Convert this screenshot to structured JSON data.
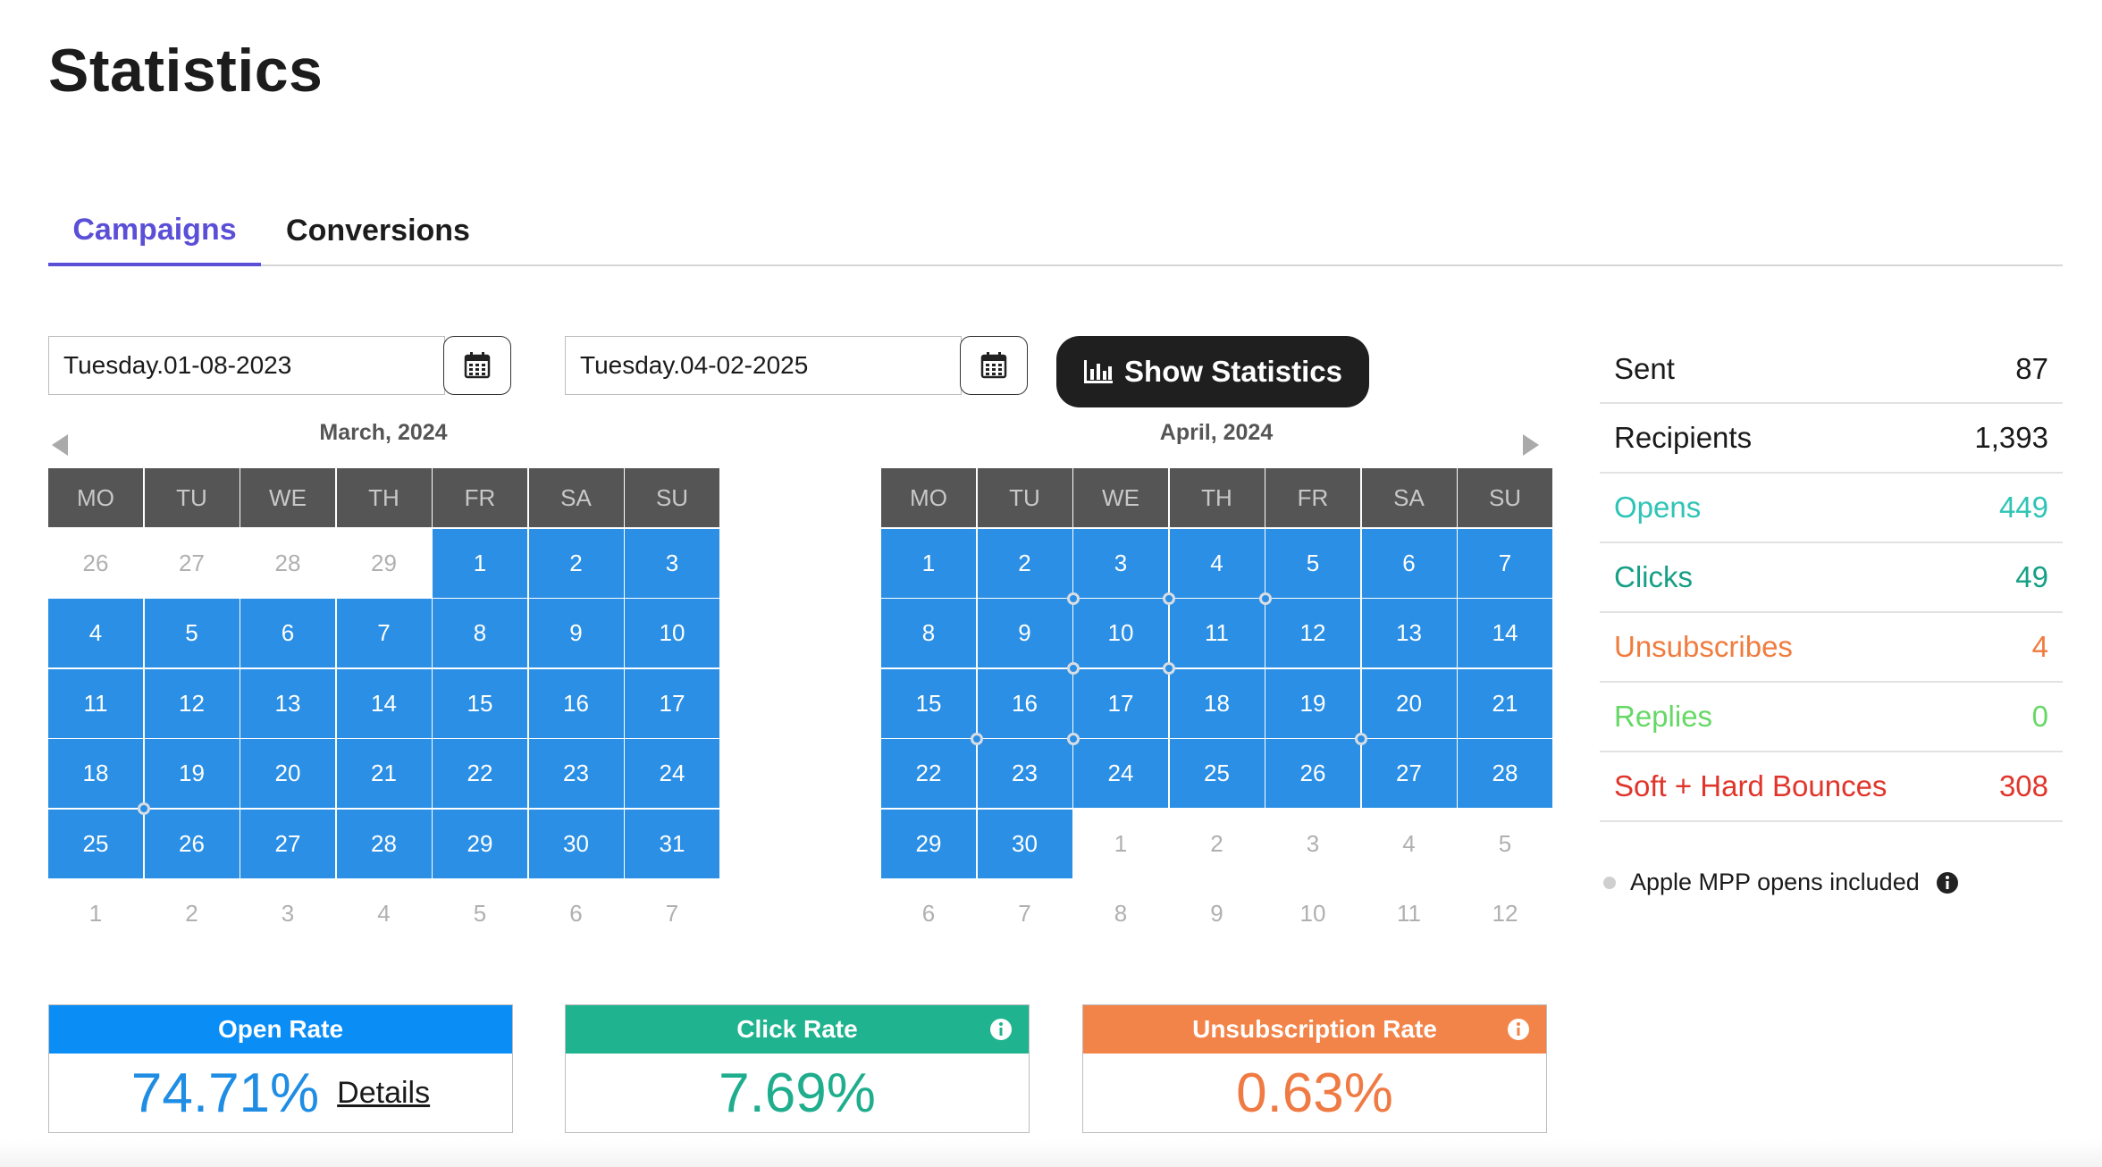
{
  "page": {
    "title": "Statistics"
  },
  "tabs": [
    {
      "label": "Campaigns",
      "active": true
    },
    {
      "label": "Conversions",
      "active": false
    }
  ],
  "date_range": {
    "start": "Tuesday.01-08-2023",
    "end": "Tuesday.04-02-2025",
    "calendar_icon": "calendar-icon"
  },
  "show_button": {
    "label": "Show Statistics",
    "icon": "bar-chart-icon"
  },
  "calendars": [
    {
      "month": "March, 2024",
      "weekdays": [
        "MO",
        "TU",
        "WE",
        "TH",
        "FR",
        "SA",
        "SU"
      ],
      "days": [
        [
          {
            "d": "26",
            "in": false
          },
          {
            "d": "27",
            "in": false
          },
          {
            "d": "28",
            "in": false
          },
          {
            "d": "29",
            "in": false
          },
          {
            "d": "1",
            "in": true
          },
          {
            "d": "2",
            "in": true
          },
          {
            "d": "3",
            "in": true
          }
        ],
        [
          {
            "d": "4",
            "in": true
          },
          {
            "d": "5",
            "in": true
          },
          {
            "d": "6",
            "in": true
          },
          {
            "d": "7",
            "in": true
          },
          {
            "d": "8",
            "in": true
          },
          {
            "d": "9",
            "in": true
          },
          {
            "d": "10",
            "in": true
          }
        ],
        [
          {
            "d": "11",
            "in": true
          },
          {
            "d": "12",
            "in": true
          },
          {
            "d": "13",
            "in": true
          },
          {
            "d": "14",
            "in": true
          },
          {
            "d": "15",
            "in": true
          },
          {
            "d": "16",
            "in": true
          },
          {
            "d": "17",
            "in": true
          }
        ],
        [
          {
            "d": "18",
            "in": true,
            "dot": true
          },
          {
            "d": "19",
            "in": true
          },
          {
            "d": "20",
            "in": true
          },
          {
            "d": "21",
            "in": true
          },
          {
            "d": "22",
            "in": true
          },
          {
            "d": "23",
            "in": true
          },
          {
            "d": "24",
            "in": true
          }
        ],
        [
          {
            "d": "25",
            "in": true
          },
          {
            "d": "26",
            "in": true
          },
          {
            "d": "27",
            "in": true
          },
          {
            "d": "28",
            "in": true
          },
          {
            "d": "29",
            "in": true
          },
          {
            "d": "30",
            "in": true
          },
          {
            "d": "31",
            "in": true
          }
        ],
        [
          {
            "d": "1",
            "in": false
          },
          {
            "d": "2",
            "in": false
          },
          {
            "d": "3",
            "in": false
          },
          {
            "d": "4",
            "in": false
          },
          {
            "d": "5",
            "in": false
          },
          {
            "d": "6",
            "in": false
          },
          {
            "d": "7",
            "in": false
          }
        ]
      ]
    },
    {
      "month": "April, 2024",
      "weekdays": [
        "MO",
        "TU",
        "WE",
        "TH",
        "FR",
        "SA",
        "SU"
      ],
      "days": [
        [
          {
            "d": "1",
            "in": true
          },
          {
            "d": "2",
            "in": true,
            "dot": true
          },
          {
            "d": "3",
            "in": true,
            "dot": true
          },
          {
            "d": "4",
            "in": true,
            "dot": true
          },
          {
            "d": "5",
            "in": true
          },
          {
            "d": "6",
            "in": true
          },
          {
            "d": "7",
            "in": true
          }
        ],
        [
          {
            "d": "8",
            "in": true
          },
          {
            "d": "9",
            "in": true,
            "dot": true
          },
          {
            "d": "10",
            "in": true,
            "dot": true
          },
          {
            "d": "11",
            "in": true
          },
          {
            "d": "12",
            "in": true
          },
          {
            "d": "13",
            "in": true
          },
          {
            "d": "14",
            "in": true
          }
        ],
        [
          {
            "d": "15",
            "in": true,
            "dot": true
          },
          {
            "d": "16",
            "in": true,
            "dot": true
          },
          {
            "d": "17",
            "in": true
          },
          {
            "d": "18",
            "in": true
          },
          {
            "d": "19",
            "in": true,
            "dot": true
          },
          {
            "d": "20",
            "in": true
          },
          {
            "d": "21",
            "in": true
          }
        ],
        [
          {
            "d": "22",
            "in": true
          },
          {
            "d": "23",
            "in": true
          },
          {
            "d": "24",
            "in": true
          },
          {
            "d": "25",
            "in": true
          },
          {
            "d": "26",
            "in": true
          },
          {
            "d": "27",
            "in": true
          },
          {
            "d": "28",
            "in": true
          }
        ],
        [
          {
            "d": "29",
            "in": true
          },
          {
            "d": "30",
            "in": true
          },
          {
            "d": "1",
            "in": false
          },
          {
            "d": "2",
            "in": false
          },
          {
            "d": "3",
            "in": false
          },
          {
            "d": "4",
            "in": false
          },
          {
            "d": "5",
            "in": false
          }
        ],
        [
          {
            "d": "6",
            "in": false
          },
          {
            "d": "7",
            "in": false
          },
          {
            "d": "8",
            "in": false
          },
          {
            "d": "9",
            "in": false
          },
          {
            "d": "10",
            "in": false
          },
          {
            "d": "11",
            "in": false
          },
          {
            "d": "12",
            "in": false
          }
        ]
      ]
    }
  ],
  "stats": [
    {
      "label": "Sent",
      "value": "87",
      "color": "#1a1a1a"
    },
    {
      "label": "Recipients",
      "value": "1,393",
      "color": "#1a1a1a"
    },
    {
      "label": "Opens",
      "value": "449",
      "color": "#2ec4b6"
    },
    {
      "label": "Clicks",
      "value": "49",
      "color": "#16a085"
    },
    {
      "label": "Unsubscribes",
      "value": "4",
      "color": "#f07c3e"
    },
    {
      "label": "Replies",
      "value": "0",
      "color": "#66d866"
    },
    {
      "label": "Soft + Hard Bounces",
      "value": "308",
      "color": "#e0352b"
    }
  ],
  "mpp_note": {
    "label": "Apple MPP opens included",
    "icon": "info-icon"
  },
  "rates": [
    {
      "title": "Open Rate",
      "value": "74.71%",
      "color": "#0a8df5",
      "value_color": "#1f8de3",
      "details": "Details"
    },
    {
      "title": "Click Rate",
      "value": "7.69%",
      "color": "#1fb38f",
      "value_color": "#1fae8d"
    },
    {
      "title": "Unsubscription Rate",
      "value": "0.63%",
      "color": "#f28449",
      "value_color": "#f07a43"
    }
  ]
}
